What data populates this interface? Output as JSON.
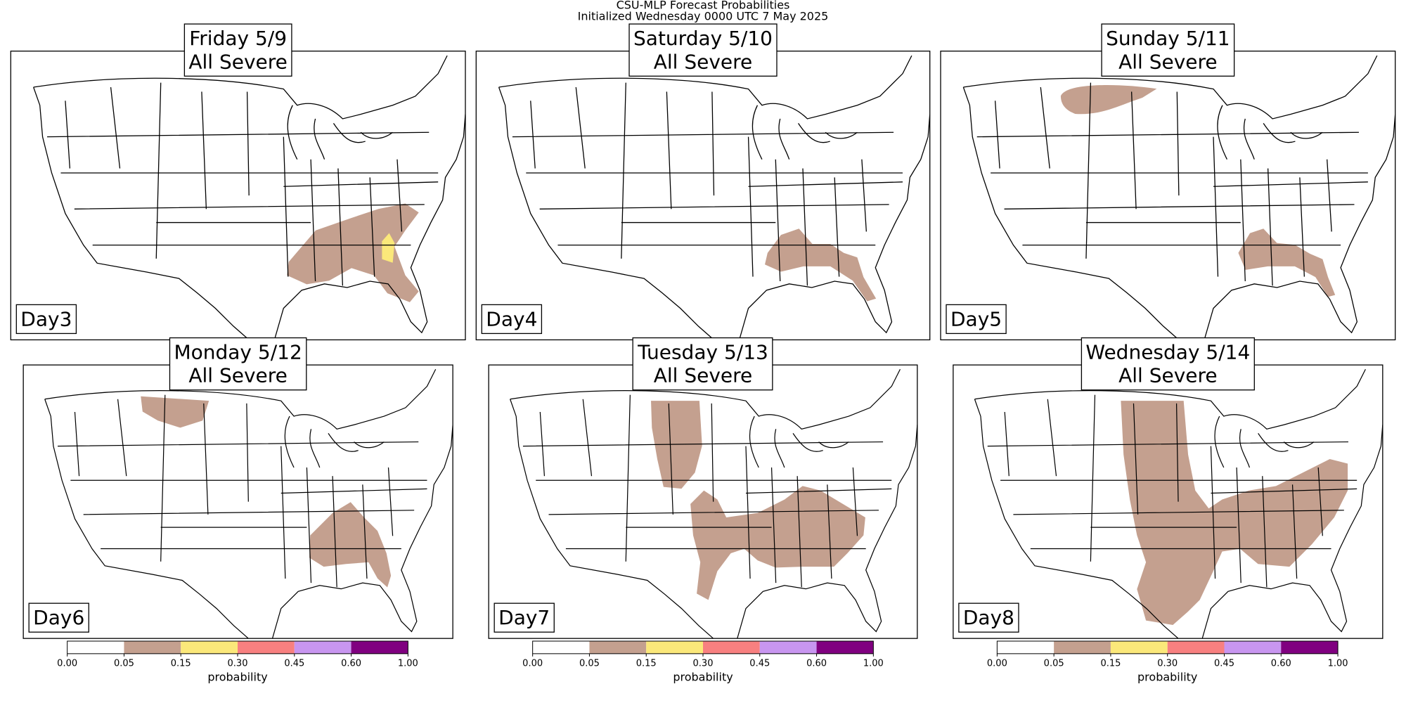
{
  "title_lines": [
    "CSU-MLP Forecast Probabilities",
    "Initialized Wednesday 0000 UTC 7 May 2025"
  ],
  "panels": [
    {
      "title_lines": [
        "Friday 5/9",
        "All Severe"
      ],
      "day": "Day3"
    },
    {
      "title_lines": [
        "Saturday 5/10",
        "All Severe"
      ],
      "day": "Day4"
    },
    {
      "title_lines": [
        "Sunday 5/11",
        "All Severe"
      ],
      "day": "Day5"
    },
    {
      "title_lines": [
        "Monday 5/12",
        "All Severe"
      ],
      "day": "Day6"
    },
    {
      "title_lines": [
        "Tuesday 5/13",
        "All Severe"
      ],
      "day": "Day7"
    },
    {
      "title_lines": [
        "Wednesday 5/14",
        "All Severe"
      ],
      "day": "Day8"
    }
  ],
  "colorbars": [
    {
      "ticks": [
        {
          "value": 0,
          "label": "0.00"
        },
        {
          "value": 0.05,
          "label": "0.05"
        },
        {
          "value": 0.15,
          "label": "0.15"
        },
        {
          "value": 0.3,
          "label": "0.30"
        },
        {
          "value": 0.45,
          "label": "0.45"
        },
        {
          "value": 0.6,
          "label": "0.60"
        },
        {
          "value": 1,
          "label": "1.00"
        }
      ],
      "colors": [
        "#ffffff",
        "#c4a08f",
        "#fbe87a",
        "#f88080",
        "#c896f0",
        "#800080"
      ],
      "label": "probability"
    },
    {
      "ticks": [
        {
          "value": 0,
          "label": "0.00"
        },
        {
          "value": 0.05,
          "label": "0.05"
        },
        {
          "value": 0.15,
          "label": "0.15"
        },
        {
          "value": 0.3,
          "label": "0.30"
        },
        {
          "value": 0.45,
          "label": "0.45"
        },
        {
          "value": 0.6,
          "label": "0.60"
        },
        {
          "value": 1,
          "label": "1.00"
        }
      ],
      "colors": [
        "#ffffff",
        "#c4a08f",
        "#fbe87a",
        "#f88080",
        "#c896f0",
        "#800080"
      ],
      "label": "probability"
    },
    {
      "ticks": [
        {
          "value": 0,
          "label": "0.00"
        },
        {
          "value": 0.05,
          "label": "0.05"
        },
        {
          "value": 0.15,
          "label": "0.15"
        },
        {
          "value": 0.3,
          "label": "0.30"
        },
        {
          "value": 0.45,
          "label": "0.45"
        },
        {
          "value": 0.6,
          "label": "0.60"
        },
        {
          "value": 1,
          "label": "1.00"
        }
      ],
      "colors": [
        "#ffffff",
        "#c4a08f",
        "#fbe87a",
        "#f88080",
        "#c896f0",
        "#800080"
      ],
      "label": "probability"
    }
  ]
}
